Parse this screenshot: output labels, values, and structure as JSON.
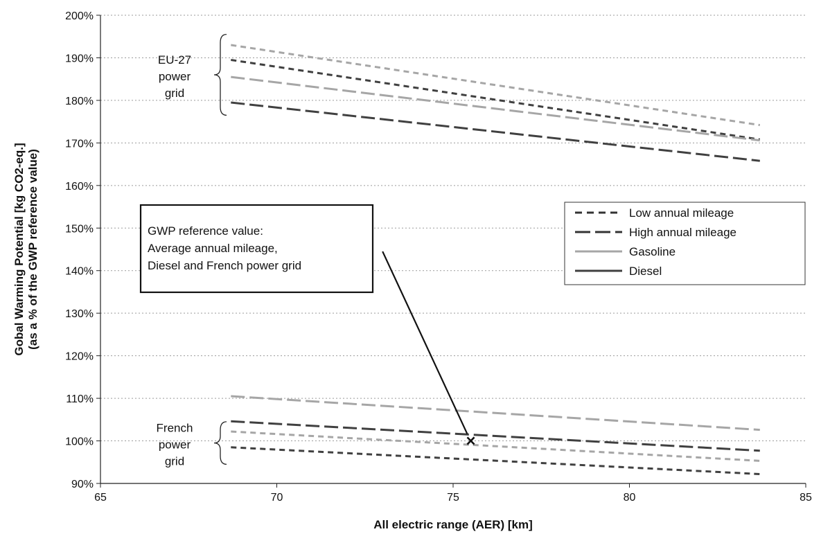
{
  "chart_data": {
    "type": "line",
    "xlabel": "All electric range (AER) [km]",
    "ylabel": [
      "Gobal Warming Potential [kg CO2-eq.]",
      "(as a % of the GWP reference value)"
    ],
    "xlim": [
      65,
      85
    ],
    "ylim": [
      90,
      200
    ],
    "x_ticks": [
      "65",
      "70",
      "75",
      "80",
      "85"
    ],
    "y_ticks": [
      "90%",
      "100%",
      "110%",
      "120%",
      "130%",
      "140%",
      "150%",
      "160%",
      "170%",
      "180%",
      "190%",
      "200%"
    ],
    "grid": "horizontal dotted",
    "legend_position": "right",
    "legend": [
      {
        "label": "Low annual mileage",
        "style": "short-dash",
        "color": "#333333"
      },
      {
        "label": "High annual mileage",
        "style": "long-dash",
        "color": "#333333"
      },
      {
        "label": "Gasoline",
        "style": "solid",
        "color": "#a6a6a6"
      },
      {
        "label": "Diesel",
        "style": "solid",
        "color": "#404040"
      }
    ],
    "series": [
      {
        "group": "EU-27",
        "fuel": "Gasoline",
        "mileage": "Low",
        "color": "#a6a6a6",
        "dash": "short",
        "x": [
          68.7,
          83.7
        ],
        "y": [
          193.0,
          174.2
        ]
      },
      {
        "group": "EU-27",
        "fuel": "Diesel",
        "mileage": "Low",
        "color": "#404040",
        "dash": "short",
        "x": [
          68.7,
          83.7
        ],
        "y": [
          189.5,
          170.8
        ]
      },
      {
        "group": "EU-27",
        "fuel": "Gasoline",
        "mileage": "High",
        "color": "#a6a6a6",
        "dash": "long",
        "x": [
          68.7,
          83.7
        ],
        "y": [
          185.5,
          170.6
        ]
      },
      {
        "group": "EU-27",
        "fuel": "Diesel",
        "mileage": "High",
        "color": "#404040",
        "dash": "long",
        "x": [
          68.7,
          83.7
        ],
        "y": [
          179.5,
          165.8
        ]
      },
      {
        "group": "French",
        "fuel": "Gasoline",
        "mileage": "High",
        "color": "#a6a6a6",
        "dash": "long",
        "x": [
          68.7,
          83.7
        ],
        "y": [
          110.5,
          102.6
        ]
      },
      {
        "group": "French",
        "fuel": "Diesel",
        "mileage": "High",
        "color": "#404040",
        "dash": "long",
        "x": [
          68.7,
          83.7
        ],
        "y": [
          104.6,
          97.7
        ]
      },
      {
        "group": "French",
        "fuel": "Gasoline",
        "mileage": "Low",
        "color": "#a6a6a6",
        "dash": "short",
        "x": [
          68.7,
          83.7
        ],
        "y": [
          102.2,
          95.3
        ]
      },
      {
        "group": "French",
        "fuel": "Diesel",
        "mileage": "Low",
        "color": "#404040",
        "dash": "short",
        "x": [
          68.7,
          83.7
        ],
        "y": [
          98.5,
          92.2
        ]
      }
    ],
    "reference_point": {
      "x": 75.5,
      "y": 100,
      "marker": "×"
    },
    "annotations": {
      "eu_label": [
        "EU-27",
        "power",
        "grid"
      ],
      "french_label": [
        "French",
        "power",
        "grid"
      ],
      "reference_box": [
        "GWP reference value:",
        "Average annual mileage,",
        "Diesel and French power grid"
      ],
      "eu_brace_range": [
        176.5,
        195.5
      ],
      "french_brace_range": [
        94.5,
        104.5
      ],
      "pointer_from": {
        "x": 73.0,
        "y": 144.5
      }
    }
  }
}
